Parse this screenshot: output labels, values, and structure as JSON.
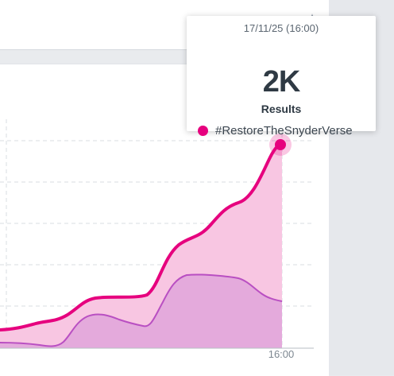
{
  "tooltip": {
    "date": "17/11/25 (16:00)",
    "value": "2K",
    "label": "Results",
    "series_name": "#RestoreTheSnyderVerse"
  },
  "icons": {
    "sparkle": "sparkle-icon"
  },
  "colors": {
    "accent": "#e6007e",
    "area_main": "#f7c4e1",
    "area_secondary": "#e1a8d9",
    "line_secondary": "#b94fc2"
  },
  "chart_data": {
    "type": "area",
    "x": [
      "16:00"
    ],
    "x_tick_labels": [
      "16:00"
    ],
    "series": [
      {
        "name": "#RestoreTheSnyderVerse",
        "values": [
          2000
        ]
      }
    ],
    "grid": true
  }
}
